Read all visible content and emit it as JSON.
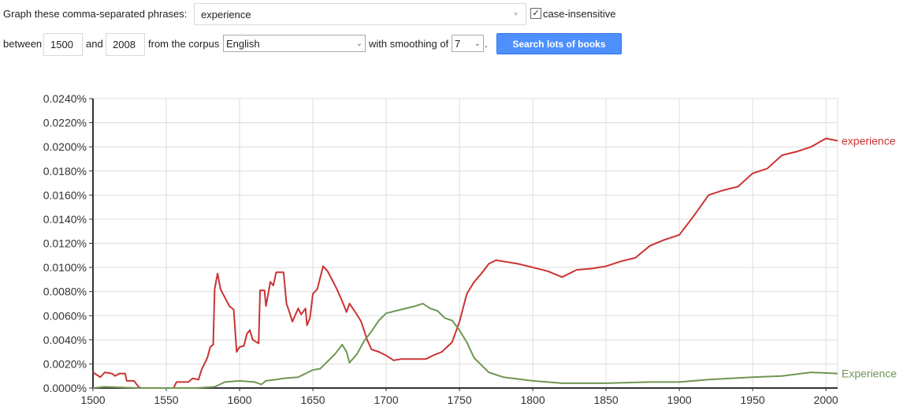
{
  "form": {
    "phrases_label": "Graph these comma-separated phrases:",
    "phrases_value": "experience",
    "case_insensitive_label": "case-insensitive",
    "case_insensitive_checked": true,
    "between_label": "between",
    "start_year": "1500",
    "and_label": "and",
    "end_year": "2008",
    "corpus_label": "from the corpus",
    "corpus_value": "English",
    "smoothing_label": "with smoothing of",
    "smoothing_value": "7",
    "period": ".",
    "search_button": "Search lots of books"
  },
  "chart_data": {
    "type": "line",
    "xlim": [
      1500,
      2008
    ],
    "ylim": [
      0,
      0.024
    ],
    "grid": true,
    "legend": "inline-right",
    "x_ticks": [
      "1500",
      "1550",
      "1600",
      "1650",
      "1700",
      "1750",
      "1800",
      "1850",
      "1900",
      "1950",
      "2000"
    ],
    "y_ticks": [
      "0.0000%",
      "0.0020%",
      "0.0040%",
      "0.0060%",
      "0.0080%",
      "0.0100%",
      "0.0120%",
      "0.0140%",
      "0.0160%",
      "0.0180%",
      "0.0200%",
      "0.0220%",
      "0.0240%"
    ],
    "series": [
      {
        "name": "experience",
        "color": "#cc3333",
        "points": [
          [
            1500,
            0.0013
          ],
          [
            1505,
            0.0009
          ],
          [
            1508,
            0.0013
          ],
          [
            1513,
            0.0012
          ],
          [
            1515,
            0.001
          ],
          [
            1518,
            0.0012
          ],
          [
            1522,
            0.0012
          ],
          [
            1523,
            0.0006
          ],
          [
            1528,
            0.0006
          ],
          [
            1531,
            0.0001
          ],
          [
            1533,
            0
          ],
          [
            1555,
            0
          ],
          [
            1557,
            0.0005
          ],
          [
            1565,
            0.0005
          ],
          [
            1568,
            0.0008
          ],
          [
            1572,
            0.0007
          ],
          [
            1574,
            0.0015
          ],
          [
            1578,
            0.0025
          ],
          [
            1580,
            0.0034
          ],
          [
            1582,
            0.0036
          ],
          [
            1583,
            0.0082
          ],
          [
            1585,
            0.0095
          ],
          [
            1587,
            0.0082
          ],
          [
            1590,
            0.0075
          ],
          [
            1593,
            0.0068
          ],
          [
            1596,
            0.0065
          ],
          [
            1598,
            0.003
          ],
          [
            1600,
            0.0034
          ],
          [
            1603,
            0.0035
          ],
          [
            1605,
            0.0045
          ],
          [
            1607,
            0.0048
          ],
          [
            1609,
            0.004
          ],
          [
            1613,
            0.0037
          ],
          [
            1614,
            0.0081
          ],
          [
            1617,
            0.0081
          ],
          [
            1618,
            0.0068
          ],
          [
            1621,
            0.0088
          ],
          [
            1623,
            0.0085
          ],
          [
            1625,
            0.0096
          ],
          [
            1630,
            0.0096
          ],
          [
            1632,
            0.007
          ],
          [
            1634,
            0.0063
          ],
          [
            1636,
            0.0055
          ],
          [
            1640,
            0.0066
          ],
          [
            1642,
            0.0061
          ],
          [
            1645,
            0.0066
          ],
          [
            1646,
            0.0052
          ],
          [
            1648,
            0.0058
          ],
          [
            1650,
            0.0078
          ],
          [
            1653,
            0.0082
          ],
          [
            1657,
            0.0101
          ],
          [
            1660,
            0.0097
          ],
          [
            1663,
            0.009
          ],
          [
            1666,
            0.0083
          ],
          [
            1670,
            0.0072
          ],
          [
            1673,
            0.0063
          ],
          [
            1675,
            0.007
          ],
          [
            1680,
            0.0061
          ],
          [
            1683,
            0.0055
          ],
          [
            1687,
            0.004
          ],
          [
            1690,
            0.0032
          ],
          [
            1695,
            0.003
          ],
          [
            1700,
            0.0027
          ],
          [
            1705,
            0.0023
          ],
          [
            1710,
            0.0024
          ],
          [
            1720,
            0.0024
          ],
          [
            1727,
            0.0024
          ],
          [
            1732,
            0.0027
          ],
          [
            1738,
            0.003
          ],
          [
            1745,
            0.0038
          ],
          [
            1750,
            0.0055
          ],
          [
            1755,
            0.0078
          ],
          [
            1760,
            0.0088
          ],
          [
            1765,
            0.0095
          ],
          [
            1770,
            0.0103
          ],
          [
            1775,
            0.0106
          ],
          [
            1780,
            0.0105
          ],
          [
            1790,
            0.0103
          ],
          [
            1800,
            0.01
          ],
          [
            1810,
            0.0097
          ],
          [
            1820,
            0.0092
          ],
          [
            1830,
            0.0098
          ],
          [
            1840,
            0.0099
          ],
          [
            1850,
            0.0101
          ],
          [
            1860,
            0.0105
          ],
          [
            1870,
            0.0108
          ],
          [
            1880,
            0.0118
          ],
          [
            1890,
            0.0123
          ],
          [
            1900,
            0.0127
          ],
          [
            1910,
            0.0143
          ],
          [
            1920,
            0.016
          ],
          [
            1930,
            0.0164
          ],
          [
            1940,
            0.0167
          ],
          [
            1950,
            0.0178
          ],
          [
            1960,
            0.0182
          ],
          [
            1970,
            0.0193
          ],
          [
            1980,
            0.0196
          ],
          [
            1990,
            0.02
          ],
          [
            2000,
            0.0207
          ],
          [
            2008,
            0.0205
          ]
        ]
      },
      {
        "name": "Experience",
        "color": "#6f9654",
        "points": [
          [
            1500,
            0
          ],
          [
            1508,
            0.0001
          ],
          [
            1530,
            0
          ],
          [
            1570,
            0
          ],
          [
            1583,
            0.0001
          ],
          [
            1590,
            0.0005
          ],
          [
            1600,
            0.0006
          ],
          [
            1610,
            0.0005
          ],
          [
            1615,
            0.0003
          ],
          [
            1618,
            0.0006
          ],
          [
            1625,
            0.0007
          ],
          [
            1630,
            0.0008
          ],
          [
            1640,
            0.0009
          ],
          [
            1645,
            0.0012
          ],
          [
            1650,
            0.0015
          ],
          [
            1655,
            0.0016
          ],
          [
            1660,
            0.0022
          ],
          [
            1665,
            0.0028
          ],
          [
            1670,
            0.0036
          ],
          [
            1673,
            0.003
          ],
          [
            1675,
            0.0021
          ],
          [
            1680,
            0.0028
          ],
          [
            1685,
            0.0039
          ],
          [
            1690,
            0.0047
          ],
          [
            1695,
            0.0056
          ],
          [
            1700,
            0.0062
          ],
          [
            1710,
            0.0065
          ],
          [
            1720,
            0.0068
          ],
          [
            1725,
            0.007
          ],
          [
            1730,
            0.0066
          ],
          [
            1735,
            0.0064
          ],
          [
            1740,
            0.0058
          ],
          [
            1745,
            0.0056
          ],
          [
            1750,
            0.0048
          ],
          [
            1755,
            0.0038
          ],
          [
            1760,
            0.0025
          ],
          [
            1770,
            0.0013
          ],
          [
            1780,
            0.0009
          ],
          [
            1800,
            0.0006
          ],
          [
            1820,
            0.0004
          ],
          [
            1850,
            0.0004
          ],
          [
            1880,
            0.0005
          ],
          [
            1900,
            0.0005
          ],
          [
            1920,
            0.0007
          ],
          [
            1950,
            0.0009
          ],
          [
            1970,
            0.001
          ],
          [
            1990,
            0.0013
          ],
          [
            2008,
            0.0012
          ]
        ]
      }
    ]
  }
}
